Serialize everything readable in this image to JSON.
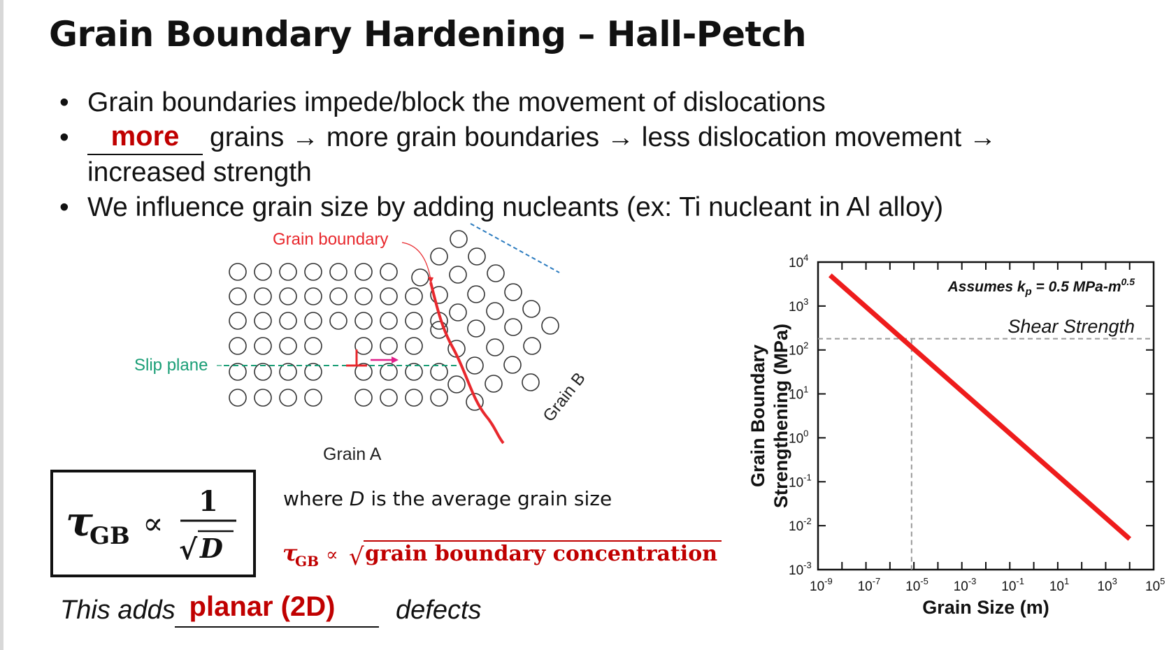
{
  "title": "Grain Boundary Hardening – Hall-Petch",
  "bullets": {
    "b1": "Grain boundaries impede/block the movement of dislocations",
    "b2_answer": "more",
    "b2_rest": "grains → more grain boundaries → less dislocation movement →",
    "b2_cont": "increased strength",
    "b3": "We influence grain size by adding nucleants (ex: Ti nucleant in Al alloy)"
  },
  "diagram": {
    "grain_boundary_label": "Grain boundary",
    "slip_plane_label": "Slip plane",
    "grain_a_label": "Grain A",
    "grain_b_label": "Grain B",
    "colors": {
      "boundary": "#e8282d",
      "slip": "#1a9e76",
      "plane_b": "#2b7bbf",
      "arrow": "#e0208a"
    }
  },
  "formula": {
    "tau": "τ",
    "sub": "GB",
    "prop": "∝",
    "num": "1",
    "sqrt": "√",
    "D": "D"
  },
  "where_text": {
    "pre": "where ",
    "D": "D",
    "post": " is the average grain size"
  },
  "red_formula": {
    "tau": "τ",
    "sub": "GB",
    "prop": "∝",
    "sqrt": "√",
    "text": "grain boundary concentration",
    "color": "#c00000"
  },
  "adds": {
    "pre": "This adds",
    "answer": "planar (2D)",
    "post": "defects"
  },
  "chart_data": {
    "type": "line",
    "xlabel": "Grain Size (m)",
    "ylabel_line1": "Grain Boundary",
    "ylabel_line2": "Strengthening (MPa)",
    "xscale": "log",
    "yscale": "log",
    "xlim": [
      1e-09,
      100000.0
    ],
    "ylim": [
      0.001,
      10000
    ],
    "x_ticks": [
      "10",
      "10",
      "10",
      "10",
      "10",
      "10",
      "10",
      "10"
    ],
    "x_tick_exps": [
      "-9",
      "-7",
      "-5",
      "-3",
      "-1",
      "1",
      "3",
      "5"
    ],
    "y_ticks": [
      "10",
      "10",
      "10",
      "10",
      "10",
      "10",
      "10",
      "10"
    ],
    "y_tick_exps": [
      "-3",
      "-2",
      "-1",
      "0",
      "1",
      "2",
      "3",
      "4"
    ],
    "series": [
      {
        "x": [
          3.2e-09,
          10000.0
        ],
        "y": [
          5000,
          0.005
        ],
        "color": "#ee1c1c"
      }
    ],
    "shear_strength": {
      "label": "Shear Strength",
      "y": 180,
      "x_intersect": 8e-06
    },
    "annotation": {
      "pre": "Assumes k",
      "sub": "p",
      "mid": " = 0.5 MPa-m",
      "sup": "0.5"
    },
    "grid": false
  }
}
